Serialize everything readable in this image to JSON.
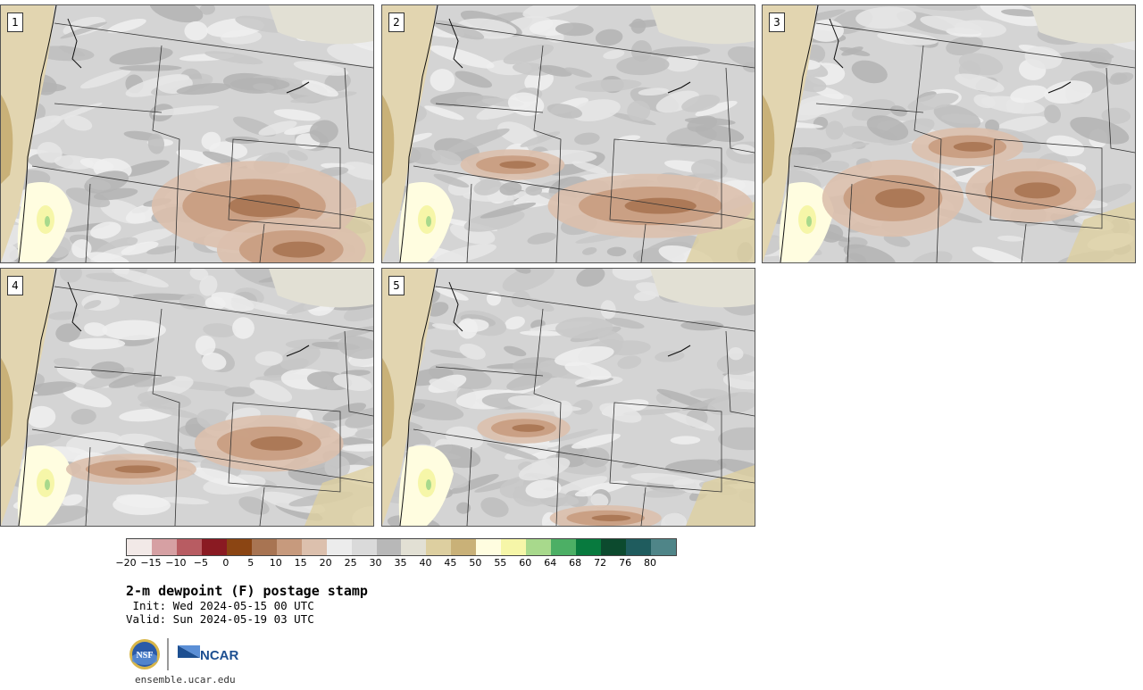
{
  "panels": [
    {
      "label": "1",
      "seed": 11,
      "warm": [
        [
          0.68,
          0.78,
          0.55,
          0.35
        ],
        [
          0.78,
          0.95,
          0.4,
          0.25
        ]
      ]
    },
    {
      "label": "2",
      "seed": 23,
      "warm": [
        [
          0.72,
          0.78,
          0.55,
          0.25
        ],
        [
          0.35,
          0.62,
          0.28,
          0.12
        ]
      ]
    },
    {
      "label": "3",
      "seed": 37,
      "warm": [
        [
          0.35,
          0.75,
          0.38,
          0.3
        ],
        [
          0.72,
          0.72,
          0.35,
          0.25
        ],
        [
          0.55,
          0.55,
          0.3,
          0.15
        ]
      ]
    },
    {
      "label": "4",
      "seed": 41,
      "warm": [
        [
          0.72,
          0.68,
          0.4,
          0.22
        ],
        [
          0.35,
          0.78,
          0.35,
          0.12
        ]
      ]
    },
    {
      "label": "5",
      "seed": 53,
      "warm": [
        [
          0.38,
          0.62,
          0.25,
          0.12
        ],
        [
          0.6,
          0.97,
          0.3,
          0.1
        ]
      ]
    }
  ],
  "colorbar": {
    "colors": [
      "#f2e9e7",
      "#d6a0a3",
      "#b85c62",
      "#8a1a22",
      "#8b4513",
      "#a87452",
      "#c79a7d",
      "#dcc0ad",
      "#ececec",
      "#dadada",
      "#b8b8b8",
      "#e2e0d4",
      "#ddcfa0",
      "#c9b178",
      "#fffde0",
      "#f6f6a8",
      "#a8d98c",
      "#4caf65",
      "#087a3e",
      "#0c4a2e",
      "#1f5c5e",
      "#4f8588"
    ],
    "ticks": [
      "−20",
      "−15",
      "−10",
      "−5",
      "0",
      "5",
      "10",
      "15",
      "20",
      "25",
      "30",
      "35",
      "40",
      "45",
      "50",
      "55",
      "60",
      "64",
      "68",
      "72",
      "76",
      "80"
    ]
  },
  "title": "2-m dewpoint (F) postage stamp",
  "init": " Init: Wed 2024-05-15 00 UTC",
  "valid": "Valid: Sun 2024-05-19 03 UTC",
  "logos": {
    "nsf": "NSF",
    "ncar": "NCAR"
  },
  "url": "ensemble.ucar.edu"
}
